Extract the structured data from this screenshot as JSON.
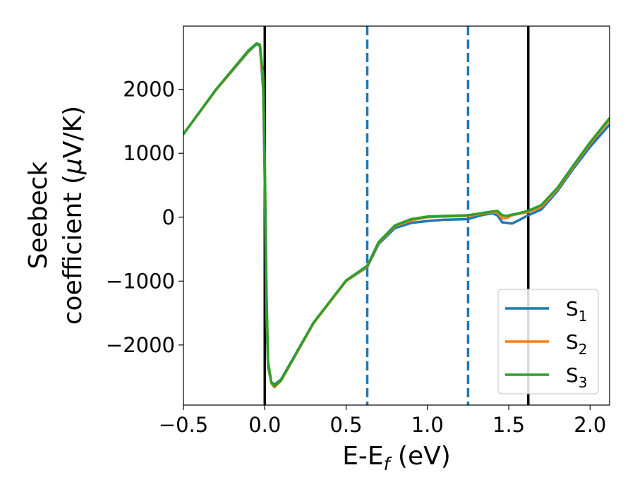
{
  "chart_data": {
    "type": "line",
    "xlabel": "E-E",
    "xlabel_sub": "f",
    "xlabel_unit": " (eV)",
    "ylabel_line1": "Seebeck",
    "ylabel_line2_text": "coefficient  (",
    "ylabel_line2_mu": "μ",
    "ylabel_line2_unit": "V/K)",
    "xlim": [
      -0.5,
      2.12
    ],
    "ylim": [
      -2940,
      2990
    ],
    "x_ticks": [
      -0.5,
      0.0,
      0.5,
      1.0,
      1.5,
      2.0
    ],
    "x_tick_labels": [
      "−0.5",
      "0.0",
      "0.5",
      "1.0",
      "1.5",
      "2.0"
    ],
    "y_ticks": [
      -2000,
      -1000,
      0,
      1000,
      2000
    ],
    "y_tick_labels": [
      "−2000",
      "−1000",
      "0",
      "1000",
      "2000"
    ],
    "vertical_lines": [
      {
        "x": 0.0,
        "style": "solid",
        "color": "#000000"
      },
      {
        "x": 1.62,
        "style": "solid",
        "color": "#000000"
      },
      {
        "x": 0.63,
        "style": "dashed",
        "color": "#1f77b4"
      },
      {
        "x": 1.25,
        "style": "dashed",
        "color": "#1f77b4"
      }
    ],
    "legend_position": "lower-right",
    "series": [
      {
        "name": "S",
        "sub": "1",
        "color": "#1f77b4",
        "points": [
          [
            -0.5,
            1300
          ],
          [
            -0.3,
            1990
          ],
          [
            -0.1,
            2590
          ],
          [
            -0.05,
            2710
          ],
          [
            -0.03,
            2680
          ],
          [
            -0.01,
            2000
          ],
          [
            0.0,
            500
          ],
          [
            0.01,
            -1500
          ],
          [
            0.02,
            -2350
          ],
          [
            0.04,
            -2580
          ],
          [
            0.06,
            -2620
          ],
          [
            0.1,
            -2540
          ],
          [
            0.3,
            -1650
          ],
          [
            0.5,
            -1000
          ],
          [
            0.63,
            -780
          ],
          [
            0.7,
            -420
          ],
          [
            0.8,
            -170
          ],
          [
            0.9,
            -90
          ],
          [
            1.0,
            -60
          ],
          [
            1.1,
            -40
          ],
          [
            1.25,
            -30
          ],
          [
            1.3,
            10
          ],
          [
            1.35,
            40
          ],
          [
            1.4,
            60
          ],
          [
            1.43,
            30
          ],
          [
            1.46,
            -80
          ],
          [
            1.49,
            -90
          ],
          [
            1.52,
            -100
          ],
          [
            1.56,
            -50
          ],
          [
            1.62,
            30
          ],
          [
            1.7,
            120
          ],
          [
            1.8,
            410
          ],
          [
            1.9,
            770
          ],
          [
            2.0,
            1100
          ],
          [
            2.12,
            1450
          ]
        ]
      },
      {
        "name": "S",
        "sub": "2",
        "color": "#ff7f0e",
        "points": [
          [
            -0.5,
            1300
          ],
          [
            -0.3,
            1990
          ],
          [
            -0.1,
            2600
          ],
          [
            -0.05,
            2720
          ],
          [
            -0.03,
            2690
          ],
          [
            -0.01,
            2100
          ],
          [
            0.0,
            800
          ],
          [
            0.01,
            -1200
          ],
          [
            0.02,
            -2300
          ],
          [
            0.04,
            -2600
          ],
          [
            0.06,
            -2660
          ],
          [
            0.1,
            -2560
          ],
          [
            0.3,
            -1660
          ],
          [
            0.5,
            -1000
          ],
          [
            0.63,
            -770
          ],
          [
            0.7,
            -400
          ],
          [
            0.8,
            -140
          ],
          [
            0.9,
            -50
          ],
          [
            1.0,
            0
          ],
          [
            1.1,
            10
          ],
          [
            1.25,
            20
          ],
          [
            1.3,
            40
          ],
          [
            1.35,
            60
          ],
          [
            1.4,
            80
          ],
          [
            1.43,
            70
          ],
          [
            1.46,
            -20
          ],
          [
            1.49,
            -10
          ],
          [
            1.52,
            30
          ],
          [
            1.56,
            50
          ],
          [
            1.62,
            80
          ],
          [
            1.7,
            160
          ],
          [
            1.8,
            440
          ],
          [
            1.9,
            800
          ],
          [
            2.0,
            1150
          ],
          [
            2.12,
            1520
          ]
        ]
      },
      {
        "name": "S",
        "sub": "3",
        "color": "#2ca02c",
        "points": [
          [
            -0.5,
            1300
          ],
          [
            -0.3,
            2000
          ],
          [
            -0.1,
            2610
          ],
          [
            -0.05,
            2720
          ],
          [
            -0.03,
            2700
          ],
          [
            -0.01,
            2200
          ],
          [
            0.0,
            900
          ],
          [
            0.01,
            -1100
          ],
          [
            0.02,
            -2250
          ],
          [
            0.04,
            -2580
          ],
          [
            0.06,
            -2640
          ],
          [
            0.1,
            -2550
          ],
          [
            0.3,
            -1650
          ],
          [
            0.5,
            -990
          ],
          [
            0.63,
            -760
          ],
          [
            0.7,
            -390
          ],
          [
            0.8,
            -130
          ],
          [
            0.9,
            -30
          ],
          [
            1.0,
            10
          ],
          [
            1.1,
            20
          ],
          [
            1.25,
            30
          ],
          [
            1.3,
            50
          ],
          [
            1.35,
            70
          ],
          [
            1.4,
            90
          ],
          [
            1.43,
            100
          ],
          [
            1.46,
            30
          ],
          [
            1.49,
            20
          ],
          [
            1.52,
            40
          ],
          [
            1.56,
            60
          ],
          [
            1.62,
            100
          ],
          [
            1.7,
            190
          ],
          [
            1.8,
            460
          ],
          [
            1.9,
            820
          ],
          [
            2.0,
            1170
          ],
          [
            2.12,
            1550
          ]
        ]
      }
    ]
  }
}
